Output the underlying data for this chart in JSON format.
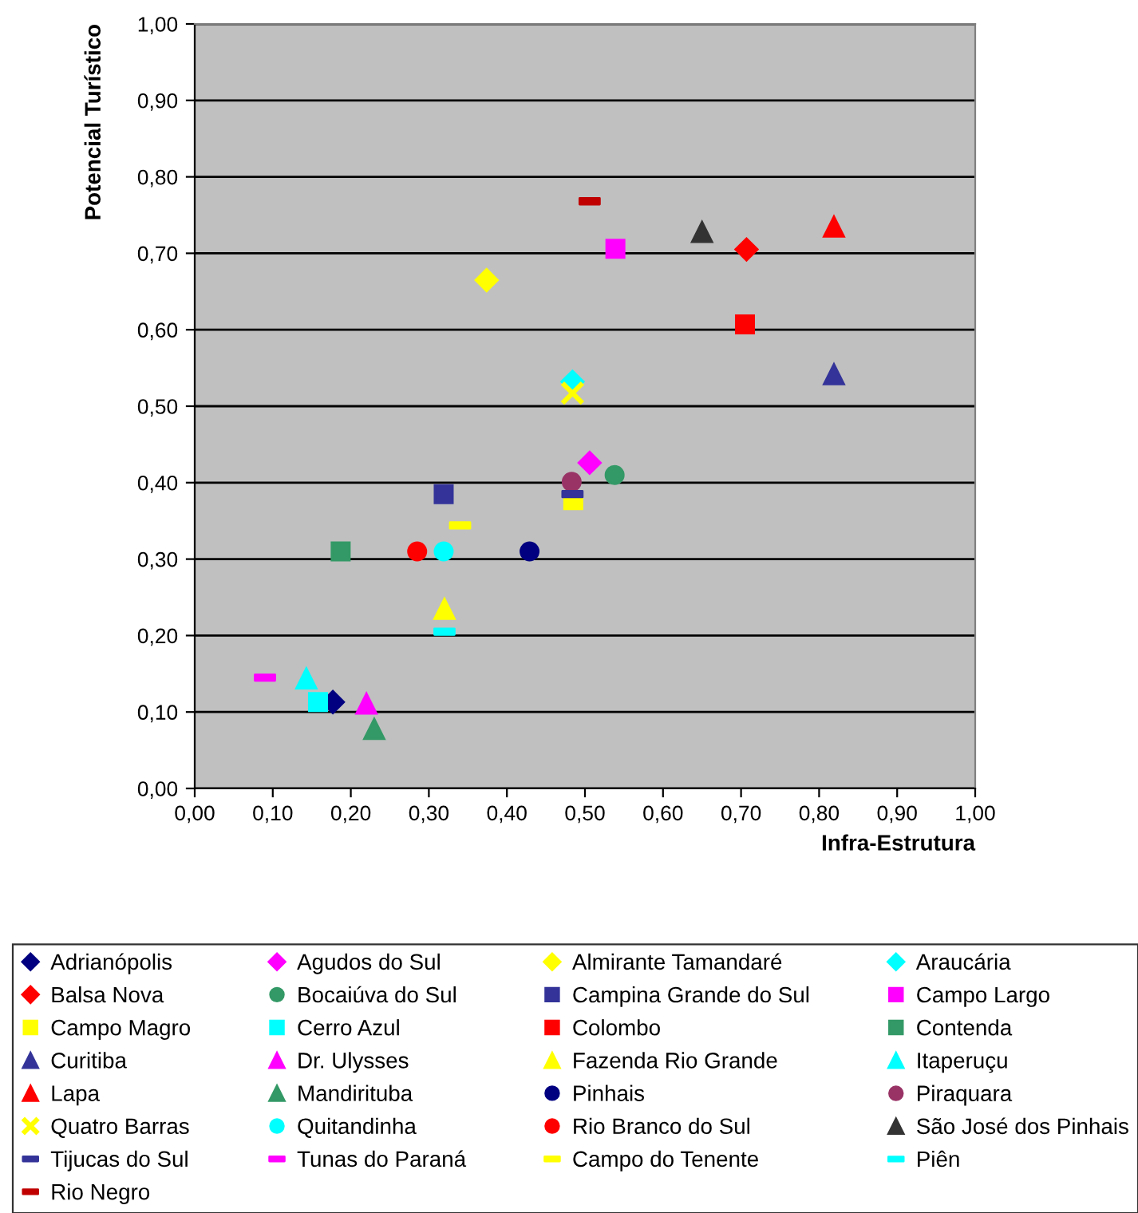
{
  "chart_data": {
    "type": "scatter",
    "xlabel": "Infra-Estrutura",
    "ylabel": "Potencial Turístico",
    "xlim": [
      0,
      1
    ],
    "ylim": [
      0,
      1
    ],
    "xticks": [
      {
        "value": 0,
        "label": "0,00"
      },
      {
        "value": 0.1,
        "label": "0,10"
      },
      {
        "value": 0.2,
        "label": "0,20"
      },
      {
        "value": 0.3,
        "label": "0,30"
      },
      {
        "value": 0.4,
        "label": "0,40"
      },
      {
        "value": 0.5,
        "label": "0,50"
      },
      {
        "value": 0.6,
        "label": "0,60"
      },
      {
        "value": 0.7,
        "label": "0,70"
      },
      {
        "value": 0.8,
        "label": "0,80"
      },
      {
        "value": 0.9,
        "label": "0,90"
      },
      {
        "value": 1,
        "label": "1,00"
      }
    ],
    "yticks": [
      {
        "value": 0,
        "label": "0,00"
      },
      {
        "value": 0.1,
        "label": "0,10"
      },
      {
        "value": 0.2,
        "label": "0,20"
      },
      {
        "value": 0.3,
        "label": "0,30"
      },
      {
        "value": 0.4,
        "label": "0,40"
      },
      {
        "value": 0.5,
        "label": "0,50"
      },
      {
        "value": 0.6,
        "label": "0,60"
      },
      {
        "value": 0.7,
        "label": "0,70"
      },
      {
        "value": 0.8,
        "label": "0,80"
      },
      {
        "value": 0.9,
        "label": "0,90"
      },
      {
        "value": 1,
        "label": "1,00"
      }
    ],
    "grid": "y",
    "legend": "bottom",
    "series": [
      {
        "name": "Adrianópolis",
        "color": "#000080",
        "marker": "diamond",
        "x": [
          0.177
        ],
        "values": [
          0.113
        ]
      },
      {
        "name": "Agudos do Sul",
        "color": "#ff00ff",
        "marker": "diamond",
        "x": [
          0.506
        ],
        "values": [
          0.426
        ]
      },
      {
        "name": "Almirante Tamandaré",
        "color": "#ffff00",
        "marker": "diamond",
        "x": [
          0.374
        ],
        "values": [
          0.665
        ]
      },
      {
        "name": "Araucária",
        "color": "#00ffff",
        "marker": "diamond",
        "x": [
          0.484
        ],
        "values": [
          0.532
        ]
      },
      {
        "name": "Balsa Nova",
        "color": "#ff0000",
        "marker": "diamond",
        "x": [
          0.707
        ],
        "values": [
          0.705
        ]
      },
      {
        "name": "Bocaiúva do Sul",
        "color": "#339966",
        "marker": "circle",
        "x": [
          0.538
        ],
        "values": [
          0.41
        ]
      },
      {
        "name": "Campina Grande do Sul",
        "color": "#333399",
        "marker": "square",
        "x": [
          0.319
        ],
        "values": [
          0.385
        ]
      },
      {
        "name": "Campo Largo",
        "color": "#ff00ff",
        "marker": "square",
        "x": [
          0.539
        ],
        "values": [
          0.706
        ]
      },
      {
        "name": "Campo Magro",
        "color": "#ffff00",
        "marker": "square",
        "x": [
          0.485
        ],
        "values": [
          0.377
        ]
      },
      {
        "name": "Cerro Azul",
        "color": "#00ffff",
        "marker": "square",
        "x": [
          0.158
        ],
        "values": [
          0.113
        ]
      },
      {
        "name": "Colombo",
        "color": "#ff0000",
        "marker": "square",
        "x": [
          0.705
        ],
        "values": [
          0.607
        ]
      },
      {
        "name": "Contenda",
        "color": "#339966",
        "marker": "square",
        "x": [
          0.187
        ],
        "values": [
          0.31
        ]
      },
      {
        "name": "Curitiba",
        "color": "#333399",
        "marker": "triangle",
        "x": [
          0.819
        ],
        "values": [
          0.542
        ]
      },
      {
        "name": "Dr. Ulysses",
        "color": "#ff00ff",
        "marker": "triangle",
        "x": [
          0.22
        ],
        "values": [
          0.111
        ]
      },
      {
        "name": "Fazenda Rio Grande",
        "color": "#ffff00",
        "marker": "triangle",
        "x": [
          0.32
        ],
        "values": [
          0.235
        ]
      },
      {
        "name": "Itaperuçu",
        "color": "#00ffff",
        "marker": "triangle",
        "x": [
          0.143
        ],
        "values": [
          0.144
        ]
      },
      {
        "name": "Lapa",
        "color": "#ff0000",
        "marker": "triangle",
        "x": [
          0.819
        ],
        "values": [
          0.735
        ]
      },
      {
        "name": "Mandirituba",
        "color": "#339966",
        "marker": "triangle",
        "x": [
          0.23
        ],
        "values": [
          0.078
        ]
      },
      {
        "name": "Pinhais",
        "color": "#000080",
        "marker": "circle",
        "x": [
          0.429
        ],
        "values": [
          0.31
        ]
      },
      {
        "name": "Piraquara",
        "color": "#993366",
        "marker": "circle",
        "x": [
          0.483
        ],
        "values": [
          0.401
        ]
      },
      {
        "name": "Quatro Barras",
        "color": "#ffff00",
        "marker": "cross",
        "x": [
          0.484
        ],
        "values": [
          0.517
        ]
      },
      {
        "name": "Quitandinha",
        "color": "#00ffff",
        "marker": "circle",
        "x": [
          0.319
        ],
        "values": [
          0.31
        ]
      },
      {
        "name": "Rio Branco do Sul",
        "color": "#ff0000",
        "marker": "circle",
        "x": [
          0.285
        ],
        "values": [
          0.31
        ]
      },
      {
        "name": "São José dos Pinhais",
        "color": "#333333",
        "marker": "triangle",
        "x": [
          0.65
        ],
        "values": [
          0.728
        ]
      },
      {
        "name": "Tijucas do Sul",
        "color": "#333399",
        "x": [
          0.484
        ],
        "values": [
          0.385
        ]
      },
      {
        "name": "Tunas do Paraná",
        "color": "#ff00ff",
        "x": [
          0.09
        ],
        "values": [
          0.145
        ]
      },
      {
        "name": "Campo do Tenente",
        "color": "#ffff00",
        "x": [
          0.34
        ],
        "values": [
          0.344
        ]
      },
      {
        "name": "Piên",
        "color": "#00ffff",
        "x": [
          0.32
        ],
        "values": [
          0.205
        ]
      },
      {
        "name": "Rio Negro",
        "color": "#c00000",
        "x": [
          0.506
        ],
        "values": [
          0.768
        ]
      }
    ]
  }
}
